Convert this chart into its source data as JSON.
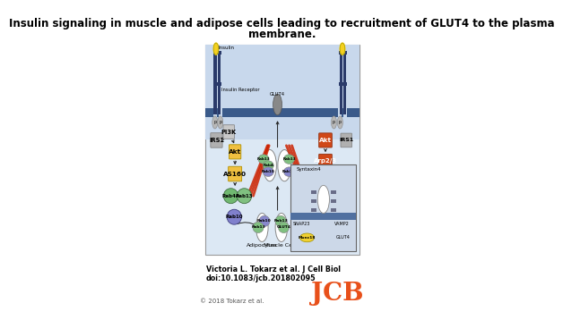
{
  "title_line1": "Insulin signaling in muscle and adipose cells leading to recruitment of GLUT4 to the plasma",
  "title_line2": "membrane.",
  "title_fontsize": 8.5,
  "title_fontweight": "bold",
  "citation_line1": "Victoria L. Tokarz et al. J Cell Biol",
  "citation_line2": "doi:10.1083/jcb.201802095",
  "citation_fontsize": 5.8,
  "citation_fontweight": "bold",
  "copyright_text": "© 2018 Tokarz et al.",
  "copyright_fontsize": 5.0,
  "jcb_text": "JCB",
  "jcb_color": "#E8501A",
  "jcb_fontsize": 20,
  "bg_color": "#ffffff",
  "diagram_bg_top": "#c8d8ec",
  "diagram_bg_bot": "#dce8f4",
  "diagram_border": "#999999",
  "plasma_membrane_color": "#3a5a8a",
  "tower_color": "#2a3a6a",
  "insulin_color": "#f5d020",
  "akt_yellow": "#f0c040",
  "as160_yellow": "#f0c040",
  "akt2_red": "#d04818",
  "arp23_red": "#d04818",
  "cofilin_red": "#d04818",
  "rab4a_color": "#70b870",
  "rab13_color": "#80c080",
  "rab10_color": "#8080cc",
  "actin_color": "#cc2200",
  "inset_bg": "#ccd8e8",
  "inset_border": "#666666",
  "arrow_color": "#222222"
}
